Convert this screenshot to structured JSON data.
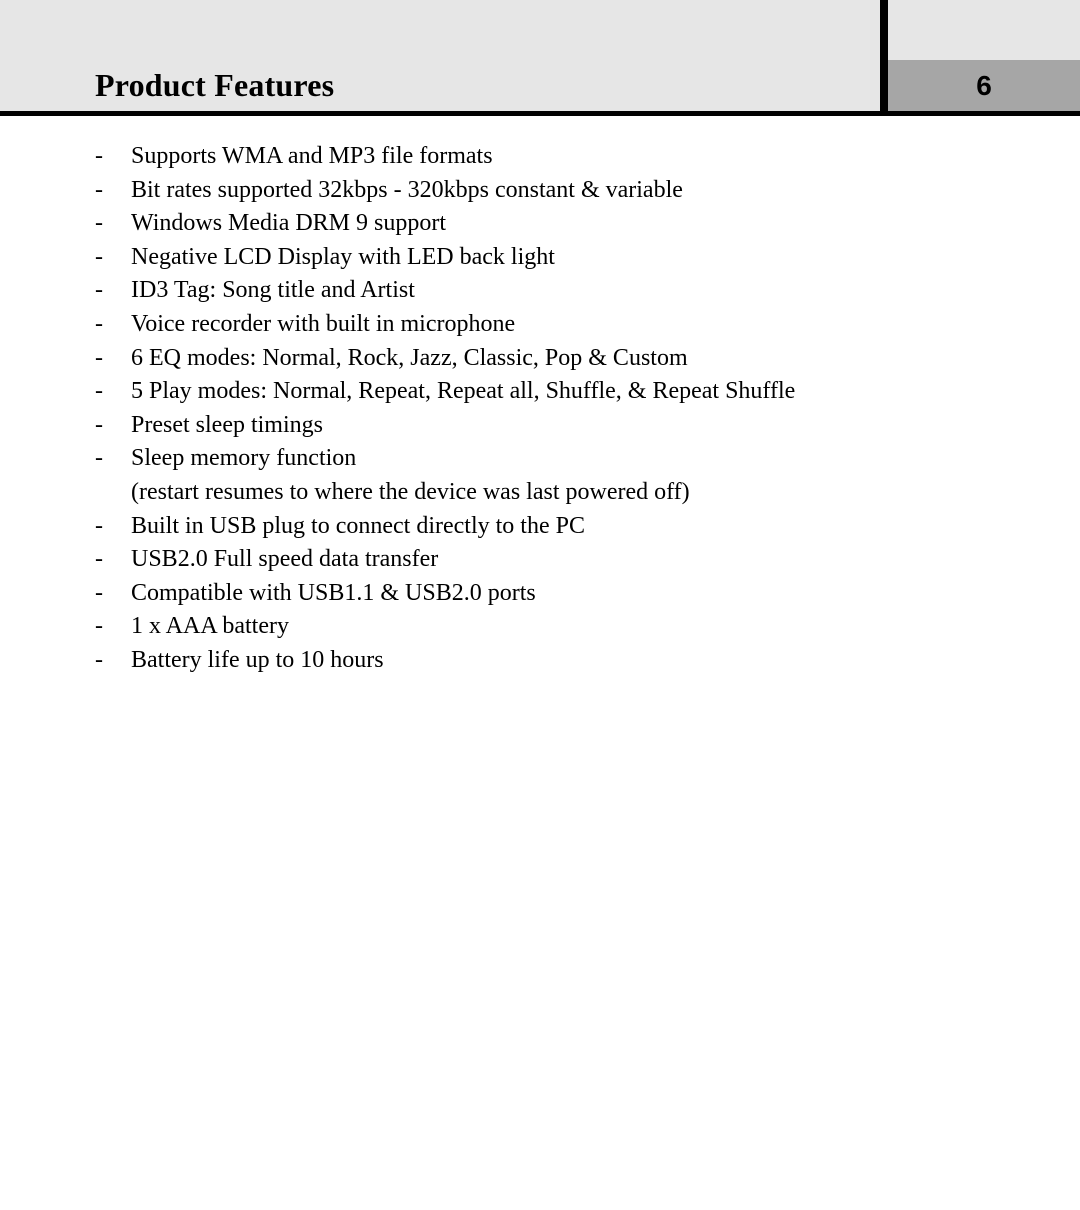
{
  "colors": {
    "page_bg": "#ffffff",
    "strip_bg": "#e6e6e6",
    "tab_bg": "#a6a6a6",
    "divider": "#000000",
    "text": "#000000"
  },
  "typography": {
    "body_family": "Times New Roman",
    "title_size_pt": 24,
    "body_size_pt": 18,
    "page_number_family": "Arial"
  },
  "header": {
    "title": "Product Features",
    "page_number": "6"
  },
  "features": {
    "bullet": "-",
    "items": [
      {
        "text": "Supports WMA and MP3 file formats"
      },
      {
        "text": "Bit rates supported 32kbps - 320kbps constant & variable"
      },
      {
        "text": "Windows Media DRM 9 support"
      },
      {
        "text": "Negative LCD Display with LED back light"
      },
      {
        "text": "ID3 Tag: Song title and Artist"
      },
      {
        "text": "Voice recorder with built in microphone"
      },
      {
        "text": "6 EQ modes: Normal, Rock, Jazz, Classic, Pop & Custom"
      },
      {
        "text": "5 Play modes: Normal, Repeat, Repeat all, Shuffle, & Repeat Shuffle"
      },
      {
        "text": "Preset sleep timings"
      },
      {
        "text": "Sleep memory function",
        "sub": "(restart resumes to where the device was last powered off)"
      },
      {
        "text": "Built in USB plug to connect directly to the PC"
      },
      {
        "text": "USB2.0 Full speed data transfer"
      },
      {
        "text": "Compatible with USB1.1 & USB2.0 ports"
      },
      {
        "text": "1 x AAA battery"
      },
      {
        "text": " Battery life up to 10 hours"
      }
    ]
  }
}
